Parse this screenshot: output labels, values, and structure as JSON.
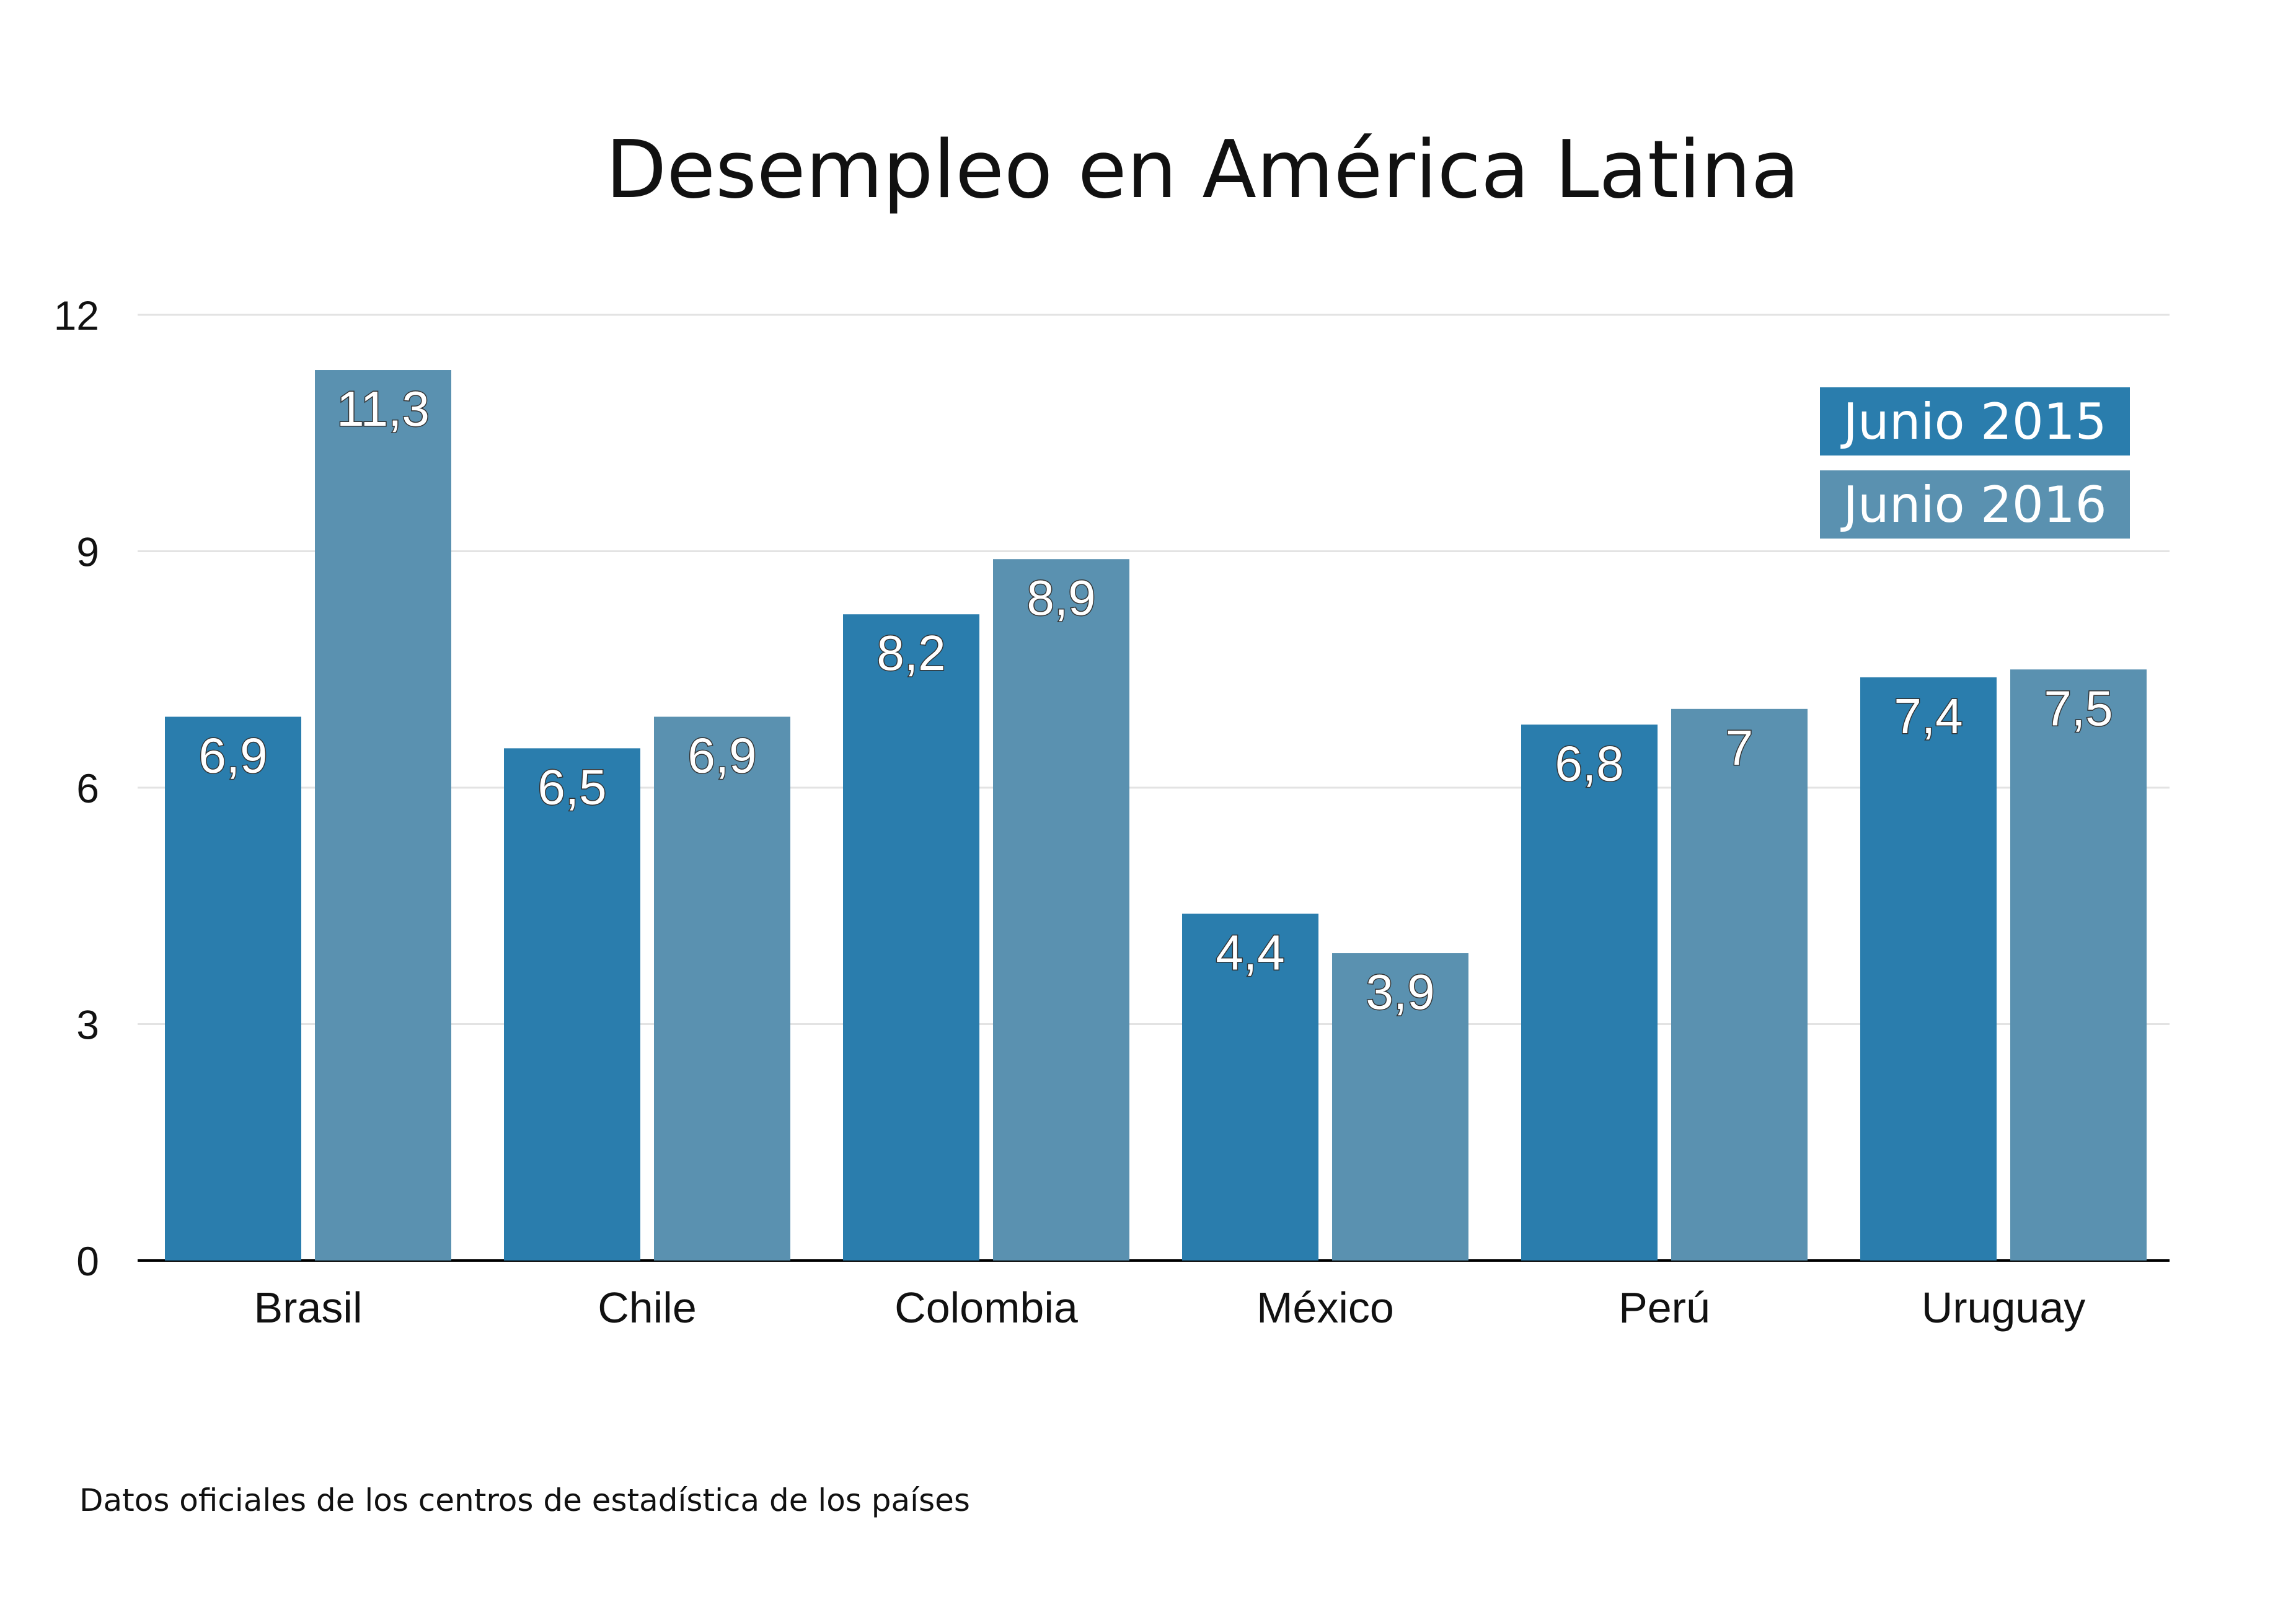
{
  "chart_data": {
    "type": "bar",
    "title": "Desempleo en América Latina",
    "categories": [
      "Brasil",
      "Chile",
      "Colombia",
      "México",
      "Perú",
      "Uruguay"
    ],
    "series": [
      {
        "name": "Junio 2015",
        "color": "#2a7dad",
        "values": [
          6.9,
          6.5,
          8.2,
          4.4,
          6.8,
          7.4
        ],
        "labels": [
          "6,9",
          "6,5",
          "8,2",
          "4,4",
          "6,8",
          "7,4"
        ]
      },
      {
        "name": "Junio 2016",
        "color": "#5a91b0",
        "values": [
          11.3,
          6.9,
          8.9,
          3.9,
          7.0,
          7.5
        ],
        "labels": [
          "11,3",
          "6,9",
          "8,9",
          "3,9",
          "7",
          "7,5"
        ]
      }
    ],
    "yticks": [
      0,
      3,
      6,
      9,
      12
    ],
    "ylim": [
      0,
      12
    ],
    "xlabel": "",
    "ylabel": "",
    "grid": true,
    "legend_position": "top-right"
  },
  "source_note": "Datos oficiales de los centros de estadística de los países"
}
